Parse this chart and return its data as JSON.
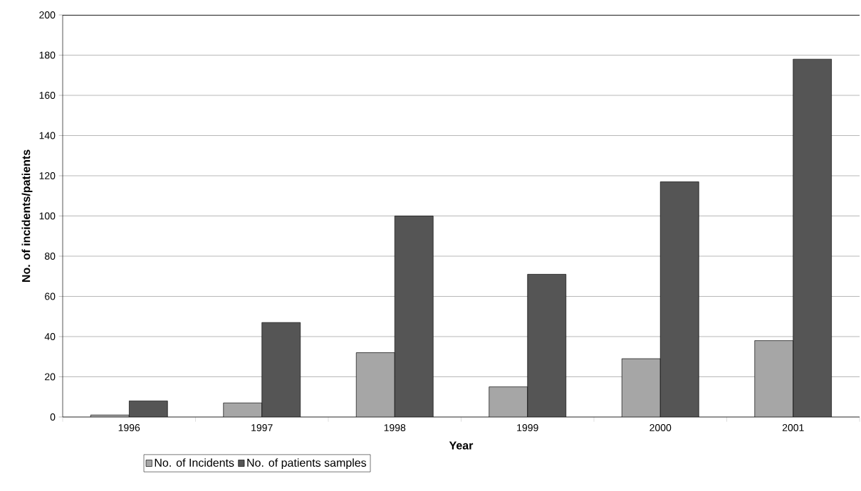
{
  "chart_data": {
    "type": "bar",
    "xlabel": "Year",
    "ylabel": "No. of incidents/patients",
    "categories": [
      "1996",
      "1997",
      "1998",
      "1999",
      "2000",
      "2001"
    ],
    "series": [
      {
        "name": "No. of Incidents",
        "color": "#a6a6a6",
        "values": [
          1,
          7,
          32,
          15,
          29,
          38
        ]
      },
      {
        "name": "No. of patients samples",
        "color": "#555555",
        "values": [
          8,
          47,
          100,
          71,
          117,
          178
        ]
      }
    ],
    "ylim": [
      0,
      200
    ],
    "yticks": [
      0,
      20,
      40,
      60,
      80,
      100,
      120,
      140,
      160,
      180,
      200
    ],
    "grid": "y",
    "legend": "bottom"
  }
}
